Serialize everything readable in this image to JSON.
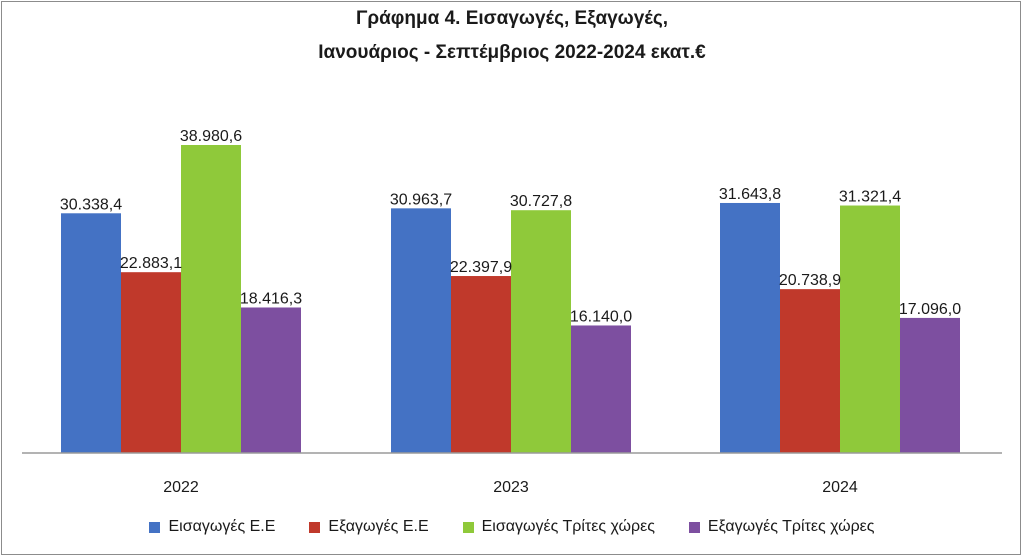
{
  "chart_data": {
    "type": "bar",
    "title_line1": "Γράφημα 4. Εισαγωγές, Εξαγωγές,",
    "title_line2": "Ιανουάριος - Σεπτέμβριος 2022-2024 εκατ.€",
    "categories": [
      "2022",
      "2023",
      "2024"
    ],
    "series": [
      {
        "name": "Εισαγωγές Ε.Ε",
        "color": "#4472c4",
        "values": [
          30338.4,
          30963.7,
          31643.8
        ],
        "labels": [
          "30.338,4",
          "30.963,7",
          "31.643,8"
        ]
      },
      {
        "name": "Εξαγωγές  Ε.Ε",
        "color": "#c0392b",
        "values": [
          22883.1,
          22397.9,
          20738.9
        ],
        "labels": [
          "22.883,1",
          "22.397,9",
          "20.738,9"
        ]
      },
      {
        "name": "Εισαγωγές Τρίτες χώρες",
        "color": "#8fc93a",
        "values": [
          38980.6,
          30727.8,
          31321.4
        ],
        "labels": [
          "38.980,6",
          "30.727,8",
          "31.321,4"
        ]
      },
      {
        "name": "Εξαγωγές Τρίτες χώρες",
        "color": "#7d4fa0",
        "values": [
          18416.3,
          16140.0,
          17096.0
        ],
        "labels": [
          "18.416,3",
          "16.140,0",
          "17.096,0"
        ]
      }
    ],
    "ylim": [
      0,
      40000
    ],
    "grid": false,
    "legend_position": "bottom"
  }
}
